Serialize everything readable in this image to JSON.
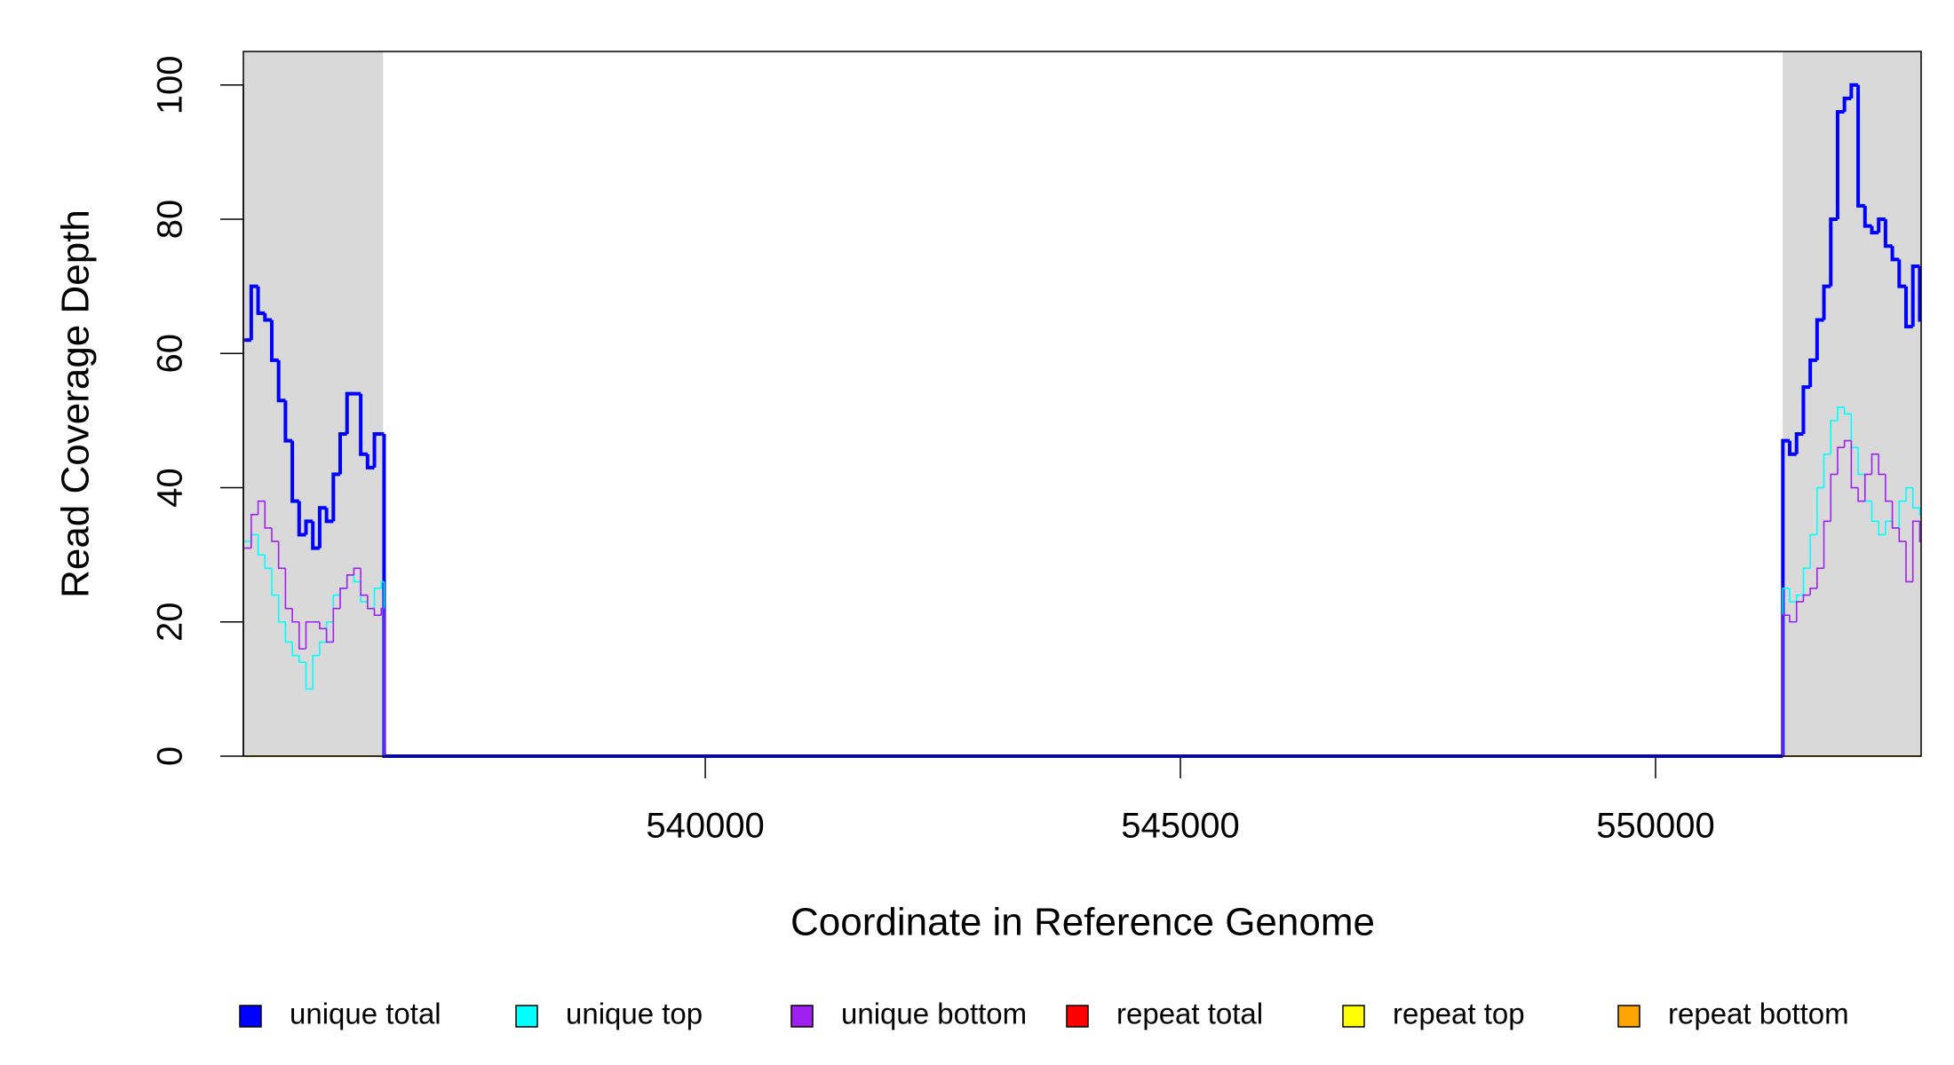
{
  "chart_data": {
    "type": "step",
    "x_label": "Coordinate in Reference Genome",
    "y_label": "Read Coverage Depth",
    "xlim": [
      535139,
      552795
    ],
    "ylim": [
      0,
      105
    ],
    "xticks": [
      540000,
      545000,
      550000
    ],
    "yticks": [
      0,
      20,
      40,
      60,
      80,
      100
    ],
    "highlight_regions": [
      [
        535139,
        536609
      ],
      [
        551338,
        552795
      ]
    ],
    "highlight_color": "#d9d9d9",
    "x": [
      535150,
      535222,
      535294,
      535366,
      535438,
      535510,
      535582,
      535654,
      535726,
      535798,
      535870,
      535942,
      536014,
      536086,
      536158,
      536230,
      536302,
      536374,
      536446,
      536518,
      536590,
      536620,
      551340,
      551412,
      551484,
      551556,
      551628,
      551700,
      551772,
      551844,
      551916,
      551988,
      552060,
      552132,
      552204,
      552276,
      552348,
      552420,
      552492,
      552564,
      552636,
      552708,
      552780
    ],
    "series": [
      {
        "name": "unique total",
        "color": "#0000ff",
        "values": [
          62,
          70,
          66,
          65,
          59,
          53,
          47,
          38,
          33,
          35,
          31,
          37,
          35,
          42,
          48,
          54,
          54,
          45,
          43,
          48,
          48,
          0,
          47,
          45,
          48,
          55,
          59,
          65,
          70,
          80,
          96,
          98,
          100,
          82,
          79,
          78,
          80,
          76,
          74,
          70,
          64,
          73,
          65
        ]
      },
      {
        "name": "unique top",
        "color": "#00ffff",
        "values": [
          32,
          33,
          30,
          28,
          24,
          20,
          17,
          15,
          14,
          10,
          15,
          17,
          20,
          24,
          25,
          27,
          26,
          23,
          22,
          25,
          26,
          0,
          25,
          23,
          24,
          28,
          33,
          40,
          45,
          50,
          52,
          51,
          46,
          42,
          38,
          35,
          33,
          35,
          34,
          38,
          40,
          37,
          36
        ]
      },
      {
        "name": "unique bottom",
        "color": "#a020f0",
        "values": [
          31,
          36,
          38,
          34,
          32,
          28,
          22,
          20,
          16,
          20,
          20,
          19,
          17,
          22,
          25,
          27,
          28,
          24,
          22,
          21,
          22,
          0,
          21,
          20,
          23,
          24,
          25,
          28,
          35,
          42,
          46,
          47,
          40,
          38,
          42,
          45,
          42,
          38,
          34,
          32,
          26,
          35,
          32
        ]
      },
      {
        "name": "repeat total",
        "color": "#ff0000",
        "values": [
          0,
          0,
          0,
          0,
          0,
          0,
          0,
          0,
          0,
          0,
          0,
          0,
          0,
          0,
          0,
          0,
          0,
          0,
          0,
          0,
          0,
          0,
          0,
          0,
          0,
          0,
          0,
          0,
          0,
          0,
          0,
          0,
          0,
          0,
          0,
          0,
          0,
          0,
          0,
          0,
          0,
          0,
          0
        ]
      },
      {
        "name": "repeat top",
        "color": "#ffff00",
        "values": [
          0,
          0,
          0,
          0,
          0,
          0,
          0,
          0,
          0,
          0,
          0,
          0,
          0,
          0,
          0,
          0,
          0,
          0,
          0,
          0,
          0,
          0,
          0,
          0,
          0,
          0,
          0,
          0,
          0,
          0,
          0,
          0,
          0,
          0,
          0,
          0,
          0,
          0,
          0,
          0,
          0,
          0,
          0
        ]
      },
      {
        "name": "repeat bottom",
        "color": "#ffa500",
        "values": [
          0,
          0,
          0,
          0,
          0,
          0,
          0,
          0,
          0,
          0,
          0,
          0,
          0,
          0,
          0,
          0,
          0,
          0,
          0,
          0,
          0,
          0,
          0,
          0,
          0,
          0,
          0,
          0,
          0,
          0,
          0,
          0,
          0,
          0,
          0,
          0,
          0,
          0,
          0,
          0,
          0,
          0,
          0
        ]
      }
    ]
  }
}
